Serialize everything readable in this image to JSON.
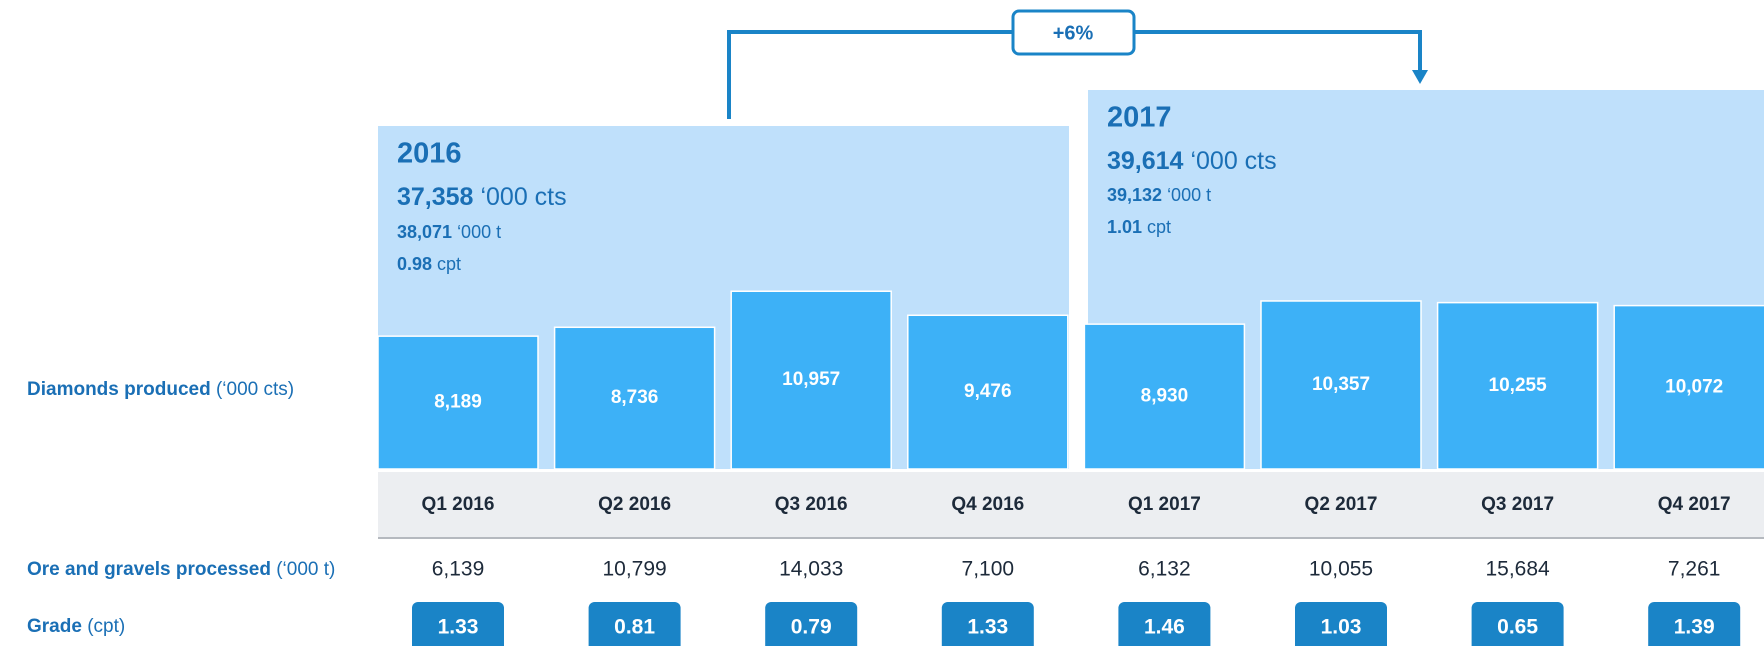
{
  "chart_data": {
    "type": "bar",
    "change_label": "+6%",
    "panels": [
      {
        "year": "2016",
        "carats": "37,358",
        "carats_unit": "‘000 cts",
        "ore": "38,071",
        "ore_unit": "‘000 t",
        "grade": "0.98",
        "grade_unit": "cpt"
      },
      {
        "year": "2017",
        "carats": "39,614",
        "carats_unit": "‘000 cts",
        "ore": "39,132",
        "ore_unit": "‘000 t",
        "grade": "1.01",
        "grade_unit": "cpt"
      }
    ],
    "label": "Diamonds produced",
    "unit": "(‘000 cts)",
    "categories": [
      "Q1 2016",
      "Q2 2016",
      "Q3 2016",
      "Q4 2016",
      "Q1 2017",
      "Q2 2017",
      "Q3 2017",
      "Q4 2017"
    ],
    "values": [
      8189,
      8736,
      10957,
      9476,
      8930,
      10357,
      10255,
      10072
    ],
    "value_labels": [
      "8,189",
      "8,736",
      "10,957",
      "9,476",
      "8,930",
      "10,357",
      "10,255",
      "10,072"
    ],
    "color": "#3db1f7",
    "ore_processed": {
      "label": "Ore and gravels processed",
      "unit": "(‘000 t)",
      "values": [
        "6,139",
        "10,799",
        "14,033",
        "7,100",
        "6,132",
        "10,055",
        "15,684",
        "7,261"
      ]
    },
    "grade": {
      "label": "Grade",
      "unit": "(cpt)",
      "values": [
        "1.33",
        "0.81",
        "0.79",
        "1.33",
        "1.46",
        "1.03",
        "0.65",
        "1.39"
      ]
    }
  }
}
